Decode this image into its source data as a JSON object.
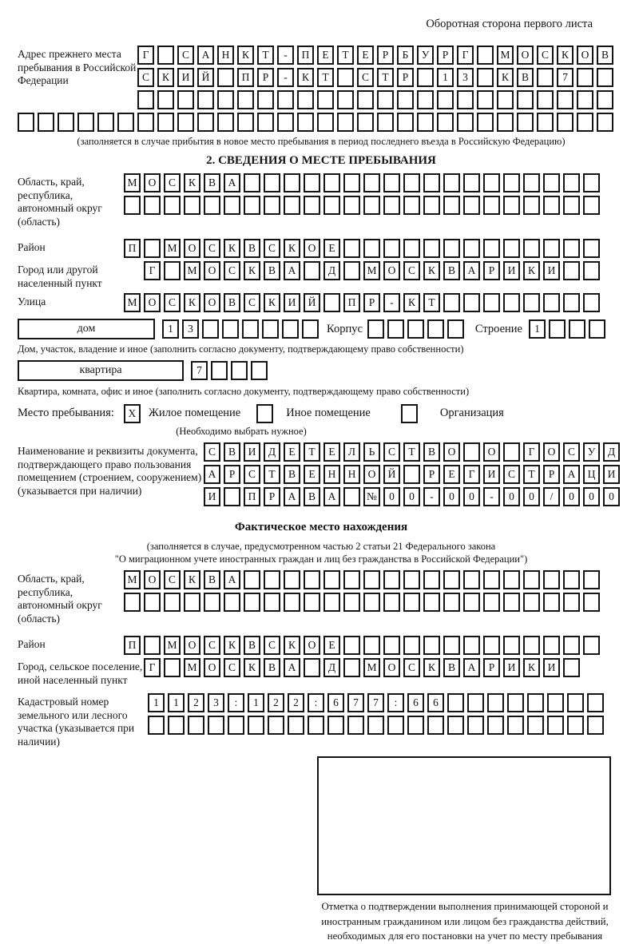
{
  "colors": {
    "ink": "#151515",
    "paper": "#ffffff"
  },
  "header": {
    "note": "Оборотная сторона первого листа"
  },
  "prev_address": {
    "label": "Адрес прежнего места пребывания в Российской Федерации",
    "rows": [
      {
        "chars": "Г САНКТ-ПЕТЕРБУРГ МОСКОВ",
        "count": 24
      },
      {
        "chars": "СКИЙ ПР-КТ СТР 13 КВ 7",
        "count": 24
      },
      {
        "chars": "",
        "count": 24
      }
    ],
    "full_row": {
      "chars": "",
      "count": 30
    },
    "note": "(заполняется в случае прибытия в новое место пребывания в период последнего въезда в Российскую Федерацию)"
  },
  "section2": {
    "title": "2. СВЕДЕНИЯ О МЕСТЕ ПРЕБЫВАНИЯ",
    "oblast": {
      "label": "Область, край, республика, автономный округ (область)",
      "rows": [
        {
          "chars": "МОСКВА",
          "count": 24
        },
        {
          "chars": "",
          "count": 24
        }
      ]
    },
    "rayon": {
      "label": "Район",
      "row": {
        "chars": "П МОСКВСКОЕ",
        "count": 24
      }
    },
    "gorod": {
      "label": "Город или другой населенный пункт",
      "row": {
        "chars": "Г МОСКВА Д МОСКВАРИКИ",
        "count": 23
      }
    },
    "ulitsa": {
      "label": "Улица",
      "row": {
        "chars": "МОСКОВСКИЙ ПР-КТ",
        "count": 24
      }
    },
    "dom": {
      "box_label": "дом",
      "cells": {
        "chars": "13",
        "count": 8
      },
      "korpus_label": "Корпус",
      "korpus_cells": {
        "chars": "",
        "count": 5
      },
      "stroenie_label": "Строение",
      "stroenie_cells": {
        "chars": "1",
        "count": 4
      },
      "note": "Дом, участок, владение и иное (заполнить согласно документу, подтверждающему право собственности)"
    },
    "kvartira": {
      "box_label": "квартира",
      "cells": {
        "chars": "7",
        "count": 4
      },
      "note": "Квартира, комната, офис и иное (заполнить согласно документу, подтверждающему право собственности)"
    },
    "mesto": {
      "label": "Место пребывания:",
      "options": [
        {
          "label": "Жилое помещение",
          "mark": "X"
        },
        {
          "label": "Иное помещение",
          "mark": ""
        },
        {
          "label": "Организация",
          "mark": ""
        }
      ],
      "note": "(Необходимо выбрать нужное)"
    },
    "doc": {
      "label": "Наименование и реквизиты документа, подтверждающего право пользования помещением (строением, сооружением) (указывается при наличии)",
      "rows": [
        {
          "chars": "СВИДЕТЕЛЬСТВО О ГОСУД",
          "count": 21
        },
        {
          "chars": "АРСТВЕННОЙ РЕГИСТРАЦИ",
          "count": 21
        },
        {
          "chars": "И ПРАВА №00-00-00/000",
          "count": 21
        }
      ]
    }
  },
  "fact": {
    "title": "Фактическое место нахождения",
    "note_line1": "(заполняется в случае, предусмотренном частью 2 статьи 21 Федерального закона",
    "note_line2": "\"О миграционном учете иностранных граждан и лиц без гражданства в Российской Федерации\")",
    "oblast": {
      "label": "Область, край, республика, автономный округ (область)",
      "rows": [
        {
          "chars": "МОСКВА",
          "count": 24
        },
        {
          "chars": "",
          "count": 24
        }
      ]
    },
    "rayon": {
      "label": "Район",
      "row": {
        "chars": "П МОСКВСКОЕ",
        "count": 24
      }
    },
    "gorod": {
      "label": "Город, сельское поселение, иной населенный пункт",
      "row": {
        "chars": "Г МОСКВА Д МОСКВАРИКИ",
        "count": 22
      }
    },
    "kadastr": {
      "label": "Кадастровый номер земельного или лесного участка (указывается при наличии)",
      "rows": [
        {
          "chars": "1123:122:677:66",
          "count": 23
        },
        {
          "chars": "",
          "count": 23
        }
      ]
    },
    "stamp_caption": "Отметка о подтверждении выполнения принимающей стороной и иностранным гражданином или лицом без гражданства действий, необходимых для его постановки на учет по месту пребывания"
  }
}
